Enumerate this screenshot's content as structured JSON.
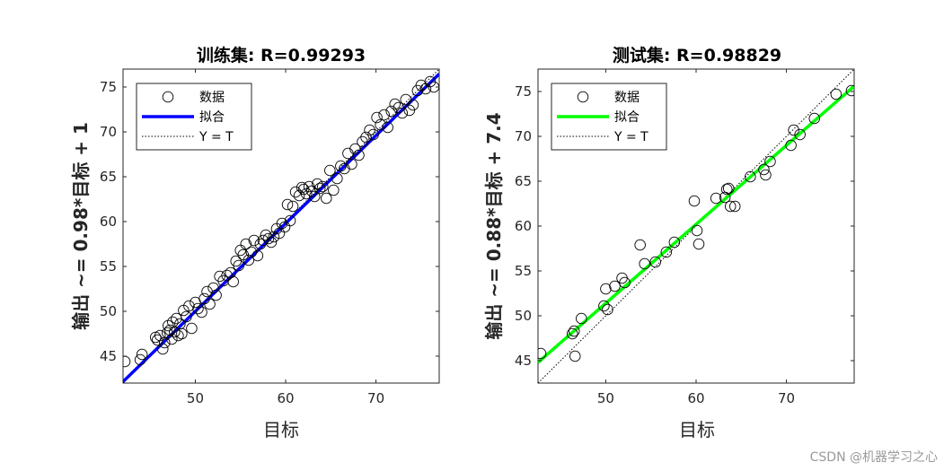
{
  "chart_data": [
    {
      "type": "scatter",
      "title": "训练集: R=0.99293",
      "xlabel": "目标",
      "ylabel": "输出 ~= 0.98*目标 + 1",
      "xlim": [
        42,
        77
      ],
      "ylim": [
        42,
        77
      ],
      "xticks": [
        50,
        60,
        70
      ],
      "yticks": [
        45,
        50,
        55,
        60,
        65,
        70,
        75
      ],
      "legend": {
        "location": "top-left",
        "entries": [
          "数据",
          "拟合",
          "Y = T"
        ]
      },
      "fit": {
        "slope": 0.98,
        "intercept": 1,
        "color": "#0000ff"
      },
      "identity_color": "#000000",
      "marker_color": "#000000",
      "series": [
        {
          "name": "数据",
          "x": [
            42.2,
            43.9,
            44.1,
            45.6,
            45.8,
            46.1,
            46.4,
            46.6,
            46.9,
            47.0,
            47.2,
            47.4,
            47.5,
            47.7,
            47.9,
            48.1,
            48.3,
            48.5,
            48.7,
            49.0,
            49.3,
            49.6,
            50.0,
            50.3,
            50.7,
            51.0,
            51.3,
            51.6,
            52.0,
            52.3,
            52.7,
            53.1,
            53.5,
            53.9,
            54.2,
            54.5,
            54.8,
            55.0,
            55.3,
            55.6,
            55.9,
            56.2,
            56.5,
            56.9,
            57.2,
            57.5,
            57.8,
            58.1,
            58.4,
            58.7,
            59.0,
            59.3,
            59.6,
            59.9,
            60.2,
            60.5,
            60.8,
            61.1,
            61.5,
            61.8,
            62.0,
            62.3,
            62.6,
            62.9,
            63.2,
            63.5,
            63.8,
            64.1,
            64.5,
            64.9,
            65.3,
            65.7,
            66.1,
            66.5,
            66.9,
            67.3,
            67.7,
            68.1,
            68.5,
            68.9,
            69.3,
            69.7,
            70.1,
            70.5,
            70.9,
            71.3,
            71.7,
            72.1,
            72.5,
            72.9,
            73.3,
            73.7,
            74.1,
            74.6,
            75.0,
            75.5,
            76.0,
            76.4
          ],
          "y": [
            44.4,
            44.6,
            45.2,
            47.1,
            46.8,
            47.3,
            45.8,
            46.5,
            47.6,
            48.4,
            47.9,
            46.9,
            48.8,
            47.7,
            49.2,
            47.3,
            48.6,
            47.5,
            50.1,
            49.4,
            50.6,
            48.1,
            51.0,
            50.3,
            49.9,
            51.4,
            52.2,
            50.8,
            52.6,
            51.8,
            53.9,
            53.4,
            54.0,
            54.3,
            53.3,
            55.6,
            55.1,
            56.8,
            56.3,
            57.5,
            55.7,
            56.6,
            57.9,
            56.2,
            57.5,
            57.9,
            58.5,
            58.1,
            57.7,
            58.3,
            59.2,
            58.7,
            59.8,
            59.4,
            61.9,
            60.1,
            61.7,
            63.3,
            62.9,
            63.8,
            63.6,
            63.1,
            63.9,
            63.4,
            62.8,
            64.2,
            63.7,
            63.9,
            62.6,
            65.7,
            63.5,
            64.8,
            66.2,
            65.9,
            67.6,
            66.4,
            68.1,
            67.4,
            68.9,
            69.4,
            70.2,
            69.7,
            71.6,
            70.8,
            71.9,
            70.5,
            72.3,
            73.1,
            72.7,
            72.1,
            73.6,
            72.4,
            73.0,
            74.6,
            75.2,
            74.8,
            75.6,
            75.0
          ]
        }
      ]
    },
    {
      "type": "scatter",
      "title": "测试集: R=0.98829",
      "xlabel": "目标",
      "ylabel": "输出 ~= 0.88*目标 + 7.4",
      "xlim": [
        42.5,
        77.5
      ],
      "ylim": [
        42.5,
        77.5
      ],
      "xticks": [
        50,
        60,
        70
      ],
      "yticks": [
        45,
        50,
        55,
        60,
        65,
        70,
        75
      ],
      "legend": {
        "location": "top-left",
        "entries": [
          "数据",
          "拟合",
          "Y = T"
        ]
      },
      "fit": {
        "slope": 0.88,
        "intercept": 7.4,
        "color": "#00ff00"
      },
      "identity_color": "#000000",
      "marker_color": "#000000",
      "series": [
        {
          "name": "数据",
          "x": [
            42.8,
            46.3,
            46.5,
            46.6,
            47.3,
            49.8,
            50.0,
            50.2,
            51.0,
            51.8,
            52.1,
            53.8,
            54.3,
            55.5,
            56.7,
            57.6,
            59.8,
            60.1,
            60.3,
            62.2,
            63.2,
            63.4,
            63.6,
            63.8,
            64.3,
            66.0,
            67.5,
            67.7,
            68.2,
            70.5,
            70.8,
            71.5,
            73.1,
            75.5,
            77.2
          ],
          "y": [
            45.8,
            48.0,
            48.3,
            45.5,
            49.7,
            51.1,
            53.0,
            50.7,
            53.3,
            54.2,
            53.7,
            57.9,
            55.8,
            56.0,
            57.1,
            58.2,
            62.8,
            59.5,
            58.0,
            63.1,
            63.2,
            64.1,
            64.2,
            62.2,
            62.2,
            65.5,
            66.3,
            65.7,
            67.2,
            69.0,
            70.7,
            70.2,
            72.0,
            74.7,
            75.1
          ]
        }
      ]
    }
  ],
  "watermark": "CSDN @机器学习之心"
}
